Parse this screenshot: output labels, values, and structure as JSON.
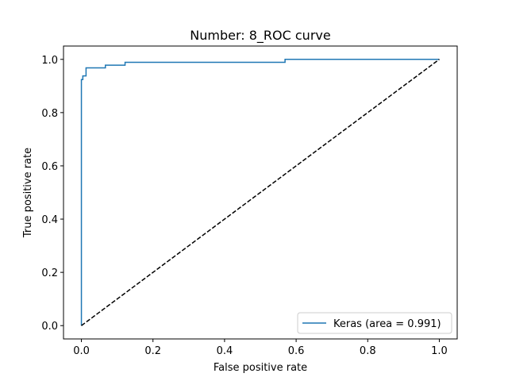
{
  "chart_data": {
    "type": "line",
    "title": "Number:  8_ROC curve",
    "xlabel": "False positive rate",
    "ylabel": "True positive rate",
    "xlim": [
      -0.05,
      1.05
    ],
    "ylim": [
      -0.05,
      1.05
    ],
    "xticks": [
      "0.0",
      "0.2",
      "0.4",
      "0.6",
      "0.8",
      "1.0"
    ],
    "yticks": [
      "0.0",
      "0.2",
      "0.4",
      "0.6",
      "0.8",
      "1.0"
    ],
    "grid": false,
    "legend": {
      "position": "lower-right"
    },
    "series": [
      {
        "name": "Keras (area = 0.991)",
        "color": "#1f77b4",
        "style": "solid",
        "x": [
          0.0,
          0.0,
          0.0,
          0.0,
          0.004,
          0.004,
          0.013,
          0.013,
          0.067,
          0.067,
          0.122,
          0.122,
          0.569,
          0.569,
          1.0
        ],
        "y": [
          0.0,
          0.878,
          0.878,
          0.924,
          0.924,
          0.938,
          0.938,
          0.968,
          0.968,
          0.978,
          0.978,
          0.989,
          0.989,
          1.0,
          1.0
        ]
      },
      {
        "color": "#000000",
        "style": "dashed",
        "x": [
          0.0,
          1.0
        ],
        "y": [
          0.0,
          1.0
        ]
      }
    ]
  }
}
